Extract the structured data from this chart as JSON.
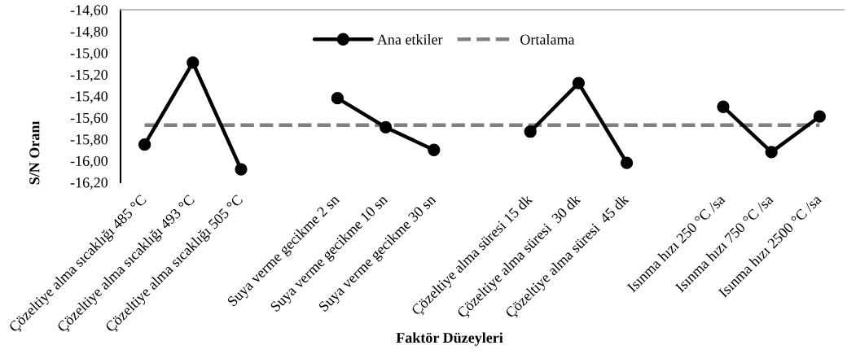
{
  "chart_data": {
    "type": "line",
    "xlabel": "Faktör Düzeyleri",
    "ylabel": "S/N Oranı",
    "categories": [
      "Çözeltiye alma sıcaklığı 485 °C",
      "Çözeltiye alma sıcaklığı 493 °C",
      "Çözeltiye alma sıcaklığı 505 °C",
      null,
      "Suya verme gecikme 2 sn",
      "Suya verme gecikme 10 sn",
      "Suya verme gecikme 30 sn",
      null,
      "Çözeltiye alma süresi 15 dk",
      "Çözeltiye alma süresi  30 dk",
      "Çözeltiye alma süresi  45 dk",
      null,
      "Isınma hızı 250 °C /sa",
      "Isınma hızı 750 °C /sa",
      "Isınma hızı 2500 °C /sa"
    ],
    "series": [
      {
        "name": "Ana etkiler",
        "color": "#000000",
        "values": [
          -15.85,
          -15.09,
          -16.08,
          null,
          -15.42,
          -15.69,
          -15.9,
          null,
          -15.73,
          -15.28,
          -16.02,
          null,
          -15.5,
          -15.92,
          -15.59
        ]
      }
    ],
    "ref_lines": [
      {
        "axis": "y",
        "value": -15.67,
        "label": "Ortalama",
        "color": "#808080",
        "line_style": "dashed"
      }
    ],
    "ylim": [
      -16.2,
      -14.6
    ],
    "yticks": [
      {
        "value": -16.2,
        "label": "-16,20"
      },
      {
        "value": -16.0,
        "label": "-16,00"
      },
      {
        "value": -15.8,
        "label": "-15,80"
      },
      {
        "value": -15.6,
        "label": "-15,60"
      },
      {
        "value": -15.4,
        "label": "-15,40"
      },
      {
        "value": -15.2,
        "label": "-15,20"
      },
      {
        "value": -15.0,
        "label": "-15,00"
      },
      {
        "value": -14.8,
        "label": "-14,80"
      },
      {
        "value": -14.6,
        "label": "-14,60"
      }
    ],
    "legend": "top",
    "marker": "circle",
    "line_style": "solid"
  }
}
